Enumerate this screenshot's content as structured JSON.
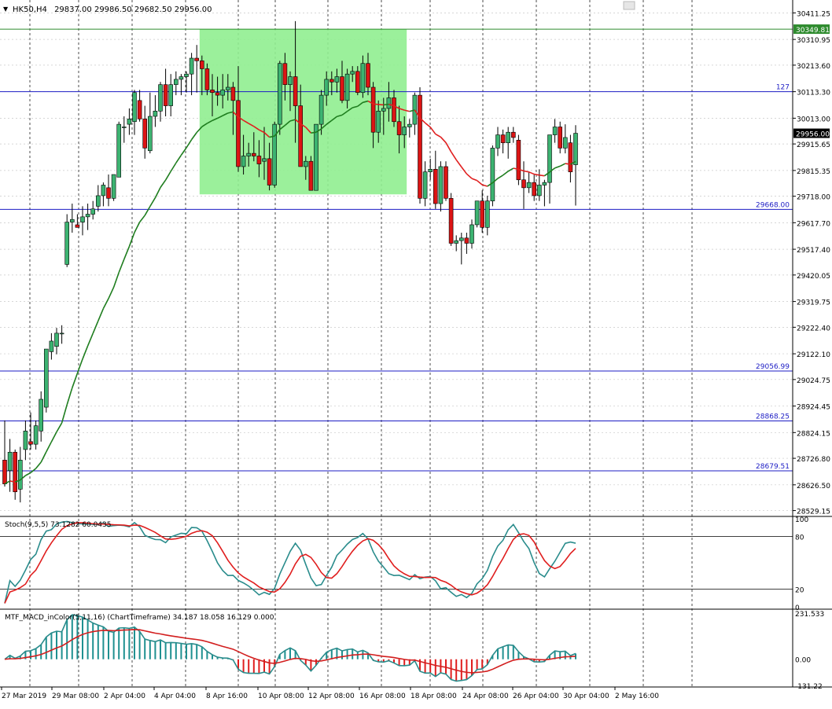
{
  "header": {
    "symbol": "HK50,H4",
    "ohlc": "29837.00 29986.50 29682.50 29956.00"
  },
  "colors": {
    "bull": "#3cb371",
    "bear": "#dc1414",
    "ma_up": "#1e7d1e",
    "ma_down": "#e01e1e",
    "hline": "#1c1cc4",
    "zone": "#90ee90",
    "stoch_main": "#2a8c8c",
    "stoch_signal": "#e01e1e",
    "macd_pos": "#1e9090",
    "macd_neg": "#e01e1e",
    "macd_line": "#2a8c8c",
    "macd_signal": "#d21e1e"
  },
  "main_panel": {
    "price_labels": [
      "30411.25",
      "30310.95",
      "30213.60",
      "30113.30",
      "30013.00",
      "29915.65",
      "29815.35",
      "29718.00",
      "29617.70",
      "29517.40",
      "29420.05",
      "29319.75",
      "29222.40",
      "29122.10",
      "29024.75",
      "28924.45",
      "28824.15",
      "28726.80",
      "28626.50",
      "28529.15"
    ],
    "current_price": "29956.00",
    "top_line_label": "30349.81",
    "level_127_label": "127",
    "hlines": [
      {
        "value": 30113.3,
        "label": "127"
      },
      {
        "value": 29668.0,
        "label": "29668.00"
      },
      {
        "value": 29056.99,
        "label": "29056.99"
      },
      {
        "value": 28868.25,
        "label": "28868.25"
      },
      {
        "value": 28679.51,
        "label": "28679.51"
      }
    ],
    "ylim": [
      28510,
      30460
    ]
  },
  "stoch_panel": {
    "title": "Stoch(9,5,5) 73.1282 60.0435",
    "level_labels": [
      "100",
      "80",
      "20",
      "0"
    ]
  },
  "macd_panel": {
    "title": "MTF_MACD_inColor(5,11,16) (ChartTimeframe) 34.187 18.058 16.129 0.000",
    "level_labels": [
      "231.533",
      "0.00",
      "-131.22"
    ]
  },
  "x_axis": {
    "labels": [
      "27 Mar 2019",
      "29 Mar 08:00",
      "2 Apr 04:00",
      "4 Apr 04:00",
      "8 Apr 16:00",
      "10 Apr 08:00",
      "12 Apr 08:00",
      "16 Apr 08:00",
      "18 Apr 08:00",
      "24 Apr 08:00",
      "26 Apr 04:00",
      "30 Apr 04:00",
      "2 May 16:00"
    ]
  },
  "chart_data": {
    "type": "candlestick",
    "symbol": "HK50",
    "timeframe": "H4",
    "last_ohlc": {
      "open": 29837.0,
      "high": 29986.5,
      "low": 29682.5,
      "close": 29956.0
    },
    "candles": [
      [
        28720,
        28870,
        28620,
        28630
      ],
      [
        28680,
        28800,
        28600,
        28750
      ],
      [
        28750,
        28760,
        28570,
        28600
      ],
      [
        28610,
        28770,
        28560,
        28720
      ],
      [
        28760,
        28870,
        28720,
        28830
      ],
      [
        28790,
        28900,
        28760,
        28780
      ],
      [
        28780,
        28870,
        28760,
        28850
      ],
      [
        28830,
        28980,
        28790,
        28950
      ],
      [
        28920,
        29140,
        28900,
        29140
      ],
      [
        29130,
        29200,
        29100,
        29170
      ],
      [
        29150,
        29220,
        29120,
        29200
      ],
      [
        29200,
        29230,
        29160,
        29200
      ],
      [
        29460,
        29650,
        29450,
        29620
      ],
      [
        29620,
        29690,
        29580,
        29630
      ],
      [
        29610,
        29650,
        29600,
        29600
      ],
      [
        29620,
        29680,
        29570,
        29640
      ],
      [
        29640,
        29690,
        29590,
        29650
      ],
      [
        29650,
        29700,
        29630,
        29670
      ],
      [
        29680,
        29760,
        29660,
        29720
      ],
      [
        29720,
        29770,
        29680,
        29760
      ],
      [
        29750,
        29800,
        29680,
        29710
      ],
      [
        29710,
        29800,
        29700,
        29800
      ],
      [
        29790,
        30000,
        29790,
        29990
      ],
      [
        29980,
        30020,
        29920,
        29980
      ],
      [
        29990,
        30050,
        29950,
        30010
      ],
      [
        30000,
        30120,
        29950,
        30110
      ],
      [
        30080,
        30120,
        30000,
        30010
      ],
      [
        30010,
        30060,
        29860,
        29900
      ],
      [
        29890,
        30110,
        29880,
        30020
      ],
      [
        30020,
        30100,
        29980,
        30040
      ],
      [
        30040,
        30150,
        30000,
        30140
      ],
      [
        30140,
        30200,
        30020,
        30060
      ],
      [
        30060,
        30180,
        30020,
        30140
      ],
      [
        30140,
        30190,
        30100,
        30160
      ],
      [
        30160,
        30180,
        30100,
        30170
      ],
      [
        30170,
        30190,
        30110,
        30180
      ],
      [
        30180,
        30260,
        30100,
        30240
      ],
      [
        30240,
        30290,
        30110,
        30230
      ],
      [
        30230,
        30250,
        30100,
        30200
      ],
      [
        30200,
        30220,
        30100,
        30120
      ],
      [
        30120,
        30180,
        30020,
        30110
      ],
      [
        30110,
        30170,
        30060,
        30100
      ],
      [
        30100,
        30180,
        30050,
        30120
      ],
      [
        30120,
        30180,
        30080,
        30130
      ],
      [
        30130,
        30150,
        29950,
        30080
      ],
      [
        30080,
        30210,
        29810,
        29830
      ],
      [
        29830,
        29950,
        29800,
        29870
      ],
      [
        29870,
        29920,
        29830,
        29880
      ],
      [
        29880,
        29960,
        29850,
        29870
      ],
      [
        29870,
        29930,
        29790,
        29840
      ],
      [
        29850,
        29980,
        29780,
        29860
      ],
      [
        29860,
        29920,
        29740,
        29760
      ],
      [
        29760,
        30000,
        29750,
        29990
      ],
      [
        29990,
        30230,
        29950,
        30220
      ],
      [
        30220,
        30260,
        30080,
        30140
      ],
      [
        30140,
        30190,
        30040,
        30170
      ],
      [
        30170,
        30380,
        29920,
        30060
      ],
      [
        30060,
        30140,
        29830,
        29830
      ],
      [
        29830,
        29870,
        29780,
        29850
      ],
      [
        29850,
        29870,
        29740,
        29740
      ],
      [
        29740,
        29990,
        29740,
        29990
      ],
      [
        29990,
        30120,
        29950,
        30100
      ],
      [
        30100,
        30190,
        30060,
        30160
      ],
      [
        30160,
        30190,
        30100,
        30150
      ],
      [
        30150,
        30200,
        30110,
        30170
      ],
      [
        30170,
        30230,
        30070,
        30080
      ],
      [
        30080,
        30200,
        30050,
        30180
      ],
      [
        30180,
        30210,
        30150,
        30190
      ],
      [
        30190,
        30210,
        30100,
        30110
      ],
      [
        30110,
        30250,
        30090,
        30220
      ],
      [
        30220,
        30260,
        30100,
        30130
      ],
      [
        30130,
        30150,
        29900,
        29960
      ],
      [
        29960,
        30080,
        29920,
        30040
      ],
      [
        30040,
        30090,
        29950,
        30050
      ],
      [
        30050,
        30150,
        30000,
        30090
      ],
      [
        30090,
        30120,
        29980,
        30000
      ],
      [
        30000,
        30060,
        29880,
        29950
      ],
      [
        29950,
        30020,
        29900,
        29980
      ],
      [
        29980,
        30010,
        29940,
        29990
      ],
      [
        29990,
        30110,
        29950,
        30100
      ],
      [
        30100,
        30130,
        29690,
        29710
      ],
      [
        29710,
        29850,
        29680,
        29810
      ],
      [
        29810,
        29860,
        29780,
        29820
      ],
      [
        29820,
        29890,
        29670,
        29690
      ],
      [
        29690,
        29850,
        29660,
        29830
      ],
      [
        29830,
        29850,
        29700,
        29710
      ],
      [
        29710,
        29730,
        29530,
        29540
      ],
      [
        29540,
        29570,
        29510,
        29550
      ],
      [
        29550,
        29580,
        29460,
        29560
      ],
      [
        29560,
        29580,
        29500,
        29540
      ],
      [
        29540,
        29630,
        29520,
        29610
      ],
      [
        29610,
        29700,
        29600,
        29700
      ],
      [
        29700,
        29740,
        29580,
        29600
      ],
      [
        29600,
        29720,
        29570,
        29700
      ],
      [
        29700,
        29910,
        29680,
        29900
      ],
      [
        29900,
        29980,
        29870,
        29950
      ],
      [
        29950,
        29970,
        29880,
        29920
      ],
      [
        29920,
        29980,
        29860,
        29960
      ],
      [
        29960,
        29980,
        29920,
        29940
      ],
      [
        29930,
        29950,
        29760,
        29780
      ],
      [
        29780,
        29850,
        29670,
        29750
      ],
      [
        29750,
        29810,
        29730,
        29770
      ],
      [
        29770,
        29800,
        29700,
        29720
      ],
      [
        29720,
        29820,
        29700,
        29760
      ],
      [
        29760,
        29780,
        29680,
        29770
      ],
      [
        29770,
        29950,
        29690,
        29950
      ],
      [
        29950,
        30010,
        29920,
        29980
      ],
      [
        29980,
        30000,
        29880,
        29900
      ],
      [
        29900,
        29990,
        29880,
        29940
      ],
      [
        29920,
        29950,
        29770,
        29810
      ],
      [
        29837,
        29986.5,
        29682.5,
        29956
      ]
    ],
    "zone": {
      "price_high": 30349.81,
      "price_low": 29725,
      "from_index": 38,
      "to_index": 77
    }
  }
}
